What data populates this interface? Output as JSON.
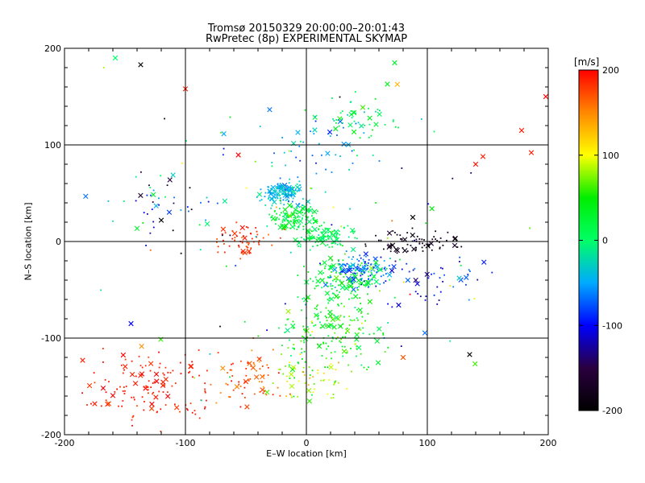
{
  "chart_data": {
    "type": "scatter",
    "title": "Tromsø 20150329 20:00:00–20:01:43",
    "subtitle": "RwPretec (8p) EXPERIMENTAL SKYMAP",
    "xlabel": "E–W location [km]",
    "ylabel": "N–S location [km]",
    "xlim": [
      -200,
      200
    ],
    "ylim": [
      -200,
      200
    ],
    "xticks": [
      -200,
      -100,
      0,
      100,
      200
    ],
    "yticks": [
      -200,
      -100,
      0,
      100,
      200
    ],
    "grid": true,
    "colorbar": {
      "unit": "[m/s]",
      "range": [
        -200,
        200
      ],
      "ticks": [
        200,
        100,
        0,
        -100,
        -200
      ],
      "colormap": [
        "#000000",
        "#2a0040",
        "#0000ff",
        "#00aaff",
        "#00ff66",
        "#00ee00",
        "#ffff00",
        "#ff8800",
        "#ff0000"
      ]
    },
    "markers": [
      "small dot",
      "cross"
    ],
    "clusters": [
      {
        "x": -20,
        "y": 50,
        "sx": 14,
        "sy": 10,
        "v": -40,
        "vs": 30,
        "n": 130
      },
      {
        "x": -10,
        "y": 25,
        "sx": 18,
        "sy": 12,
        "v": 20,
        "vs": 30,
        "n": 120
      },
      {
        "x": 15,
        "y": 5,
        "sx": 20,
        "sy": 10,
        "v": 10,
        "vs": 25,
        "n": 110
      },
      {
        "x": 45,
        "y": -30,
        "sx": 22,
        "sy": 14,
        "v": -70,
        "vs": 35,
        "n": 140
      },
      {
        "x": 30,
        "y": -40,
        "sx": 25,
        "sy": 18,
        "v": 30,
        "vs": 30,
        "n": 120
      },
      {
        "x": 20,
        "y": -90,
        "sx": 40,
        "sy": 30,
        "v": 40,
        "vs": 40,
        "n": 170
      },
      {
        "x": -50,
        "y": 0,
        "sx": 22,
        "sy": 15,
        "v": 180,
        "vs": 20,
        "n": 60
      },
      {
        "x": -130,
        "y": -150,
        "sx": 40,
        "sy": 30,
        "v": 190,
        "vs": 15,
        "n": 130
      },
      {
        "x": -50,
        "y": -140,
        "sx": 25,
        "sy": 25,
        "v": 170,
        "vs": 30,
        "n": 70
      },
      {
        "x": 0,
        "y": -140,
        "sx": 25,
        "sy": 20,
        "v": 90,
        "vs": 50,
        "n": 70
      },
      {
        "x": 90,
        "y": 0,
        "sx": 35,
        "sy": 10,
        "v": -180,
        "vs": 15,
        "n": 70
      },
      {
        "x": 110,
        "y": -40,
        "sx": 40,
        "sy": 25,
        "v": -100,
        "vs": 40,
        "n": 45
      },
      {
        "x": 40,
        "y": 130,
        "sx": 30,
        "sy": 25,
        "v": 10,
        "vs": 40,
        "n": 50
      },
      {
        "x": 10,
        "y": 100,
        "sx": 30,
        "sy": 25,
        "v": -50,
        "vs": 40,
        "n": 40
      },
      {
        "x": -110,
        "y": 40,
        "sx": 35,
        "sy": 30,
        "v": -80,
        "vs": 90,
        "n": 40
      },
      {
        "x": 0,
        "y": 0,
        "sx": 160,
        "sy": 130,
        "v": 0,
        "vs": 150,
        "n": 110
      }
    ],
    "prominent_markers": [
      {
        "x": -158,
        "y": 190,
        "v": 0
      },
      {
        "x": -137,
        "y": 183,
        "v": -200
      },
      {
        "x": -100,
        "y": 158,
        "v": 190
      },
      {
        "x": 73,
        "y": 185,
        "v": 30
      },
      {
        "x": 67,
        "y": 163,
        "v": 40
      },
      {
        "x": 198,
        "y": 150,
        "v": 200
      },
      {
        "x": 178,
        "y": 115,
        "v": 190
      },
      {
        "x": 146,
        "y": 88,
        "v": 190
      },
      {
        "x": 186,
        "y": 92,
        "v": 190
      },
      {
        "x": 140,
        "y": 80,
        "v": 190
      },
      {
        "x": 88,
        "y": 25,
        "v": -200
      },
      {
        "x": -120,
        "y": 22,
        "v": -200
      },
      {
        "x": -145,
        "y": -85,
        "v": -100
      },
      {
        "x": -185,
        "y": -123,
        "v": 190
      },
      {
        "x": -175,
        "y": -168,
        "v": 190
      },
      {
        "x": 135,
        "y": -117,
        "v": -200
      },
      {
        "x": 80,
        "y": -120,
        "v": 170
      },
      {
        "x": -50,
        "y": -145,
        "v": 180
      }
    ]
  }
}
